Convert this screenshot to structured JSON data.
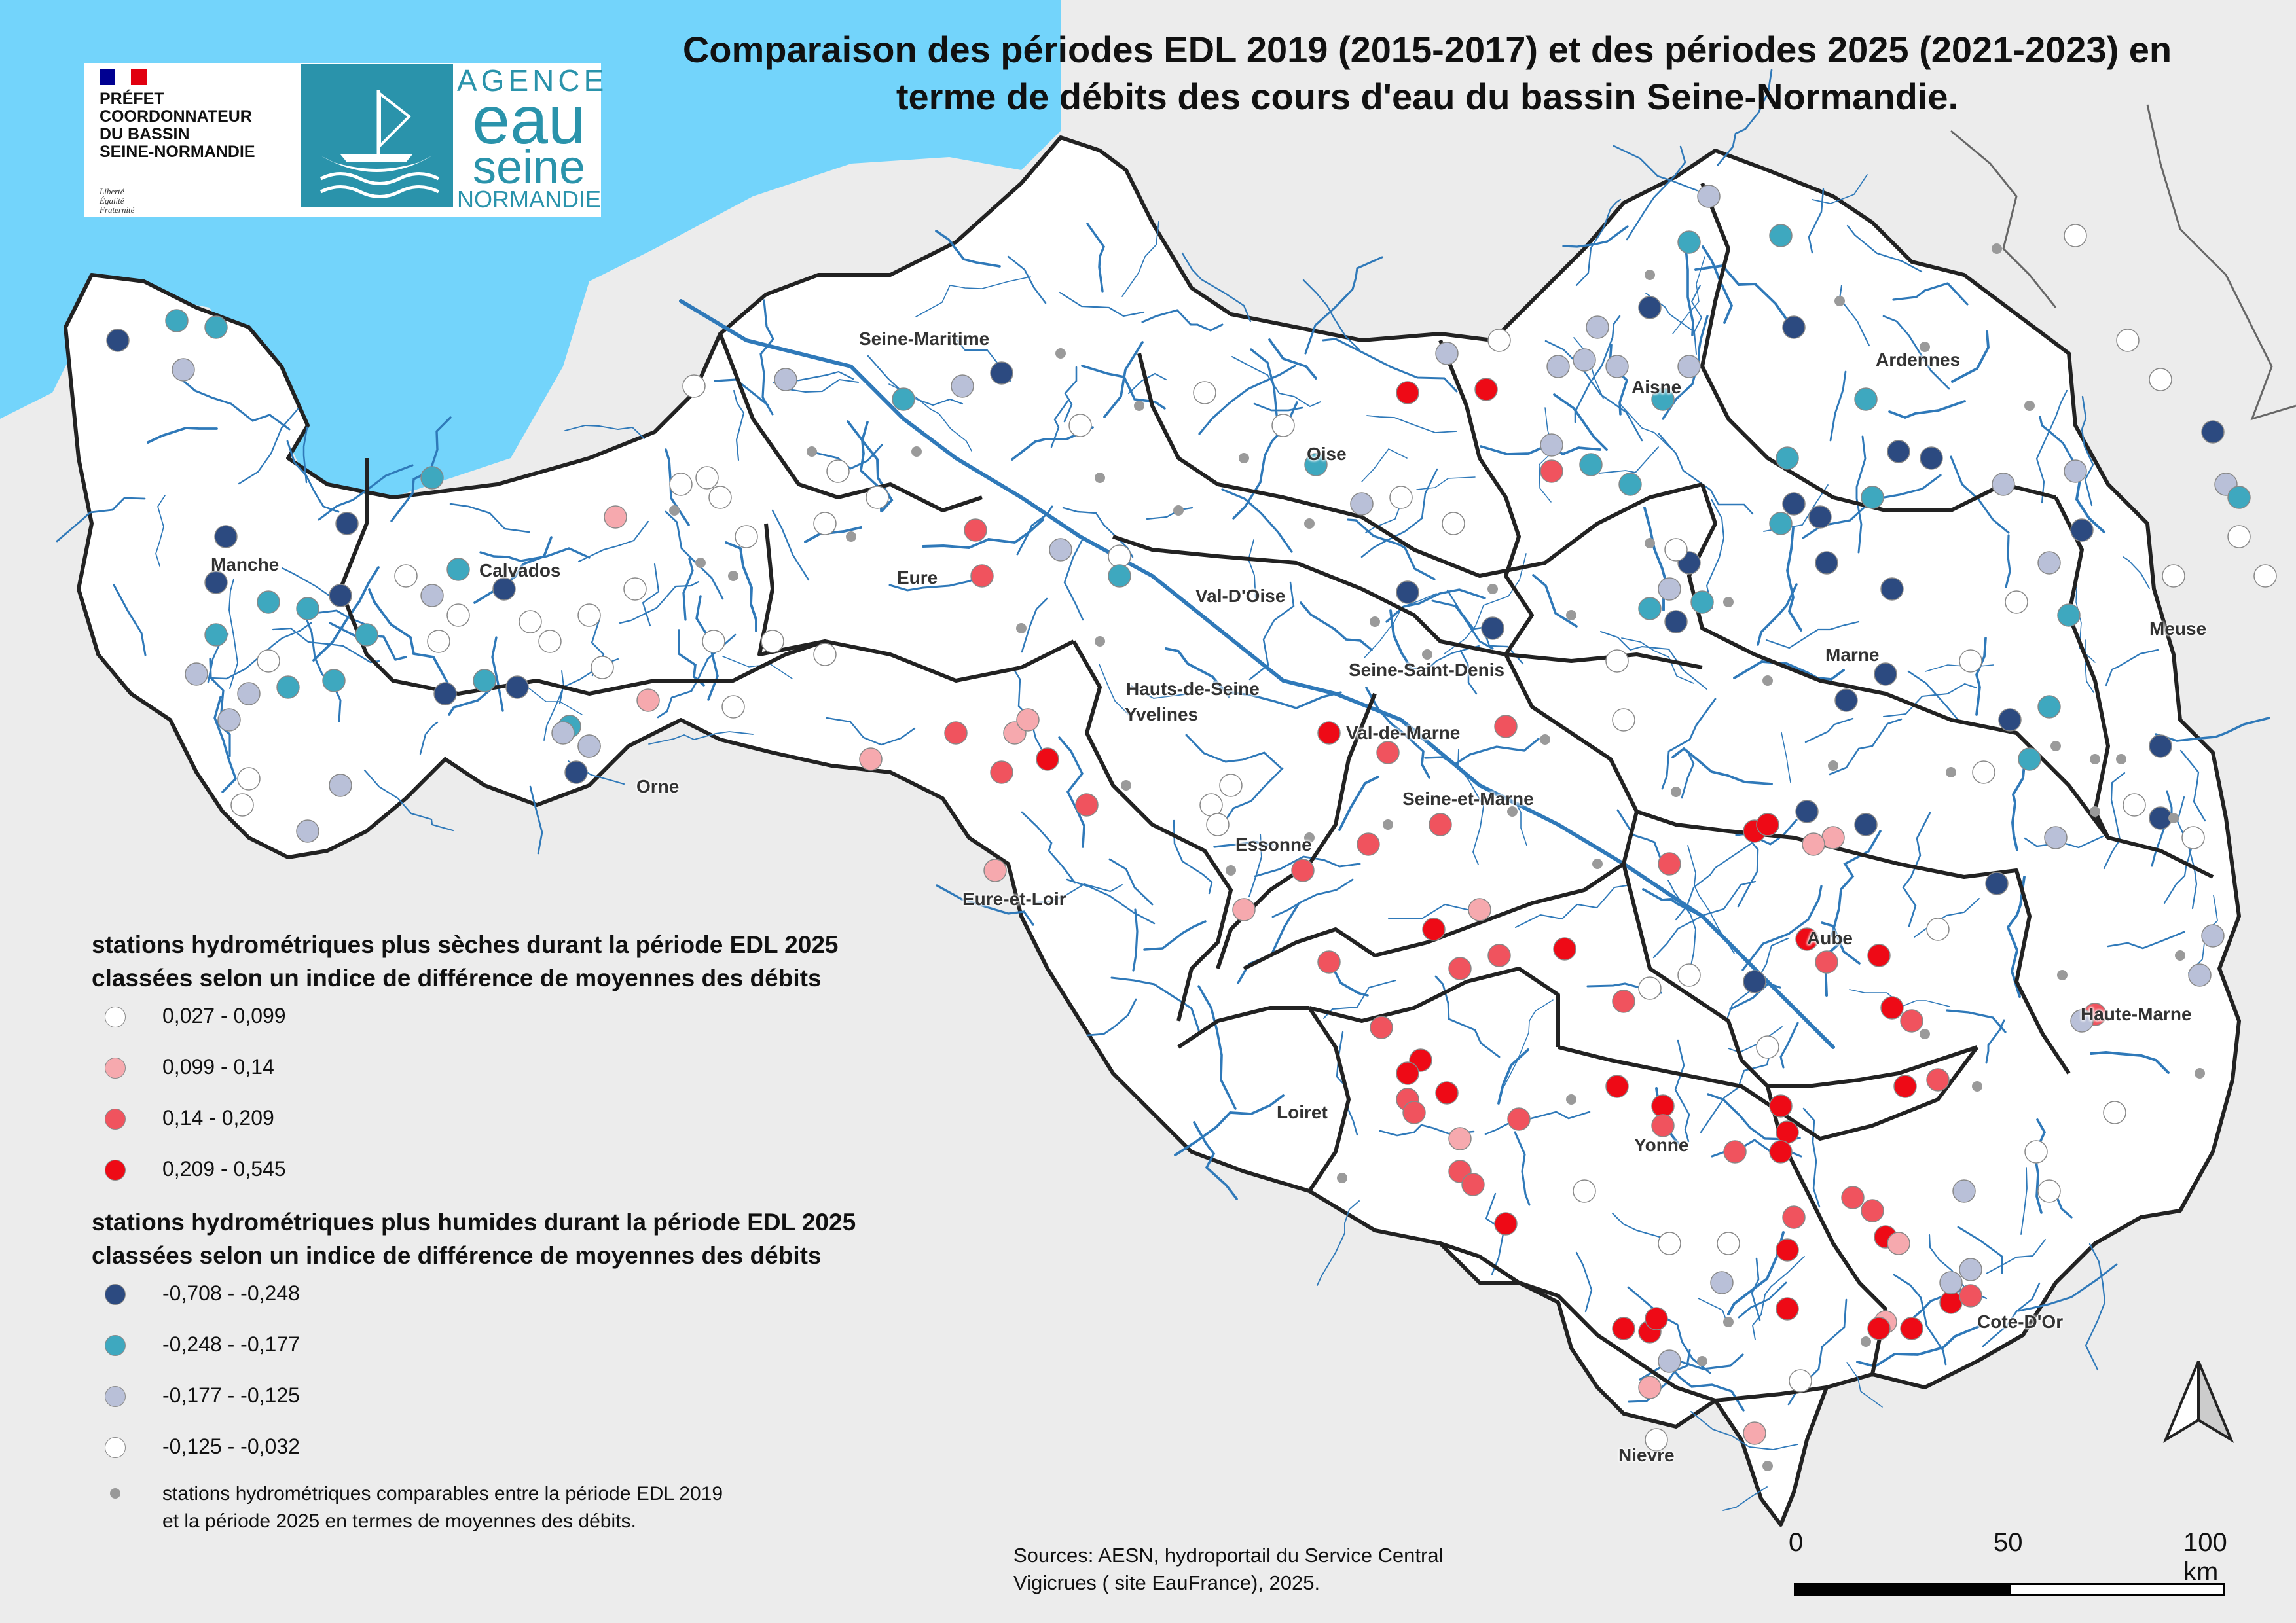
{
  "title": {
    "line1": "Comparaison des périodes EDL 2019 (2015-2017) et des périodes 2025 (2021-2023) en",
    "line2": "terme de débits des cours d'eau du bassin Seine-Normandie."
  },
  "logos": {
    "prefet": {
      "line1": "PRÉFET",
      "line2": "COORDONNATEUR",
      "line3": "DU BASSIN",
      "line4": "SEINE-NORMANDIE",
      "motto1": "Liberté",
      "motto2": "Égalité",
      "motto3": "Fraternité"
    },
    "agence": {
      "line1": "AGENCE",
      "line2": "eau",
      "line3": "seine",
      "line4": "NORMANDIE"
    }
  },
  "departments": [
    "Seine-Maritime",
    "Aisne",
    "Ardennes",
    "Oise",
    "Manche",
    "Calvados",
    "Eure",
    "Val-D'Oise",
    "Meuse",
    "Marne",
    "Seine-Saint-Denis",
    "Hauts-de-Seine",
    "Yvelines",
    "Val-de-Marne",
    "Orne",
    "Seine-et-Marne",
    "Essonne",
    "Eure-et-Loir",
    "Aube",
    "Haute-Marne",
    "Loiret",
    "Yonne",
    "Cote-D'Or",
    "Nievre"
  ],
  "legend": {
    "dry_title_1": "stations hydrométriques plus sèches durant la période EDL 2025",
    "dry_title_2": "classées selon un indice de différence de moyennes des débits",
    "dry_classes": [
      {
        "label": "0,027 - 0,099",
        "color": "#ffffff"
      },
      {
        "label": "0,099 - 0,14",
        "color": "#f6a9ae"
      },
      {
        "label": "0,14 - 0,209",
        "color": "#f0535e"
      },
      {
        "label": "0,209 - 0,545",
        "color": "#ee0a16"
      }
    ],
    "wet_title_1": "stations hydrométriques plus humides durant la période EDL 2025",
    "wet_title_2": "classées selon un indice de différence de moyennes des débits",
    "wet_classes": [
      {
        "label": "-0,708 - -0,248",
        "color": "#2c4a80"
      },
      {
        "label": "-0,248 - -0,177",
        "color": "#3ea8bf"
      },
      {
        "label": "-0,177 - -0,125",
        "color": "#b9c0d8"
      },
      {
        "label": "-0,125 - -0,032",
        "color": "#ffffff"
      }
    ],
    "comparable_1": "stations hydrométriques comparables entre la période EDL 2019",
    "comparable_2": "et la période 2025 en termes de moyennes des débits."
  },
  "sources": {
    "line1": "Sources: AESN, hydroportail du Service Central",
    "line2": "Vigicrues ( site EauFrance), 2025."
  },
  "scale": {
    "l0": "0",
    "l50": "50",
    "l100": "100 km"
  },
  "colors": {
    "sea": "#73d4fb",
    "land": "#ececec",
    "basin": "#ffffff",
    "river": "#2f79b9",
    "border": "#222222"
  }
}
